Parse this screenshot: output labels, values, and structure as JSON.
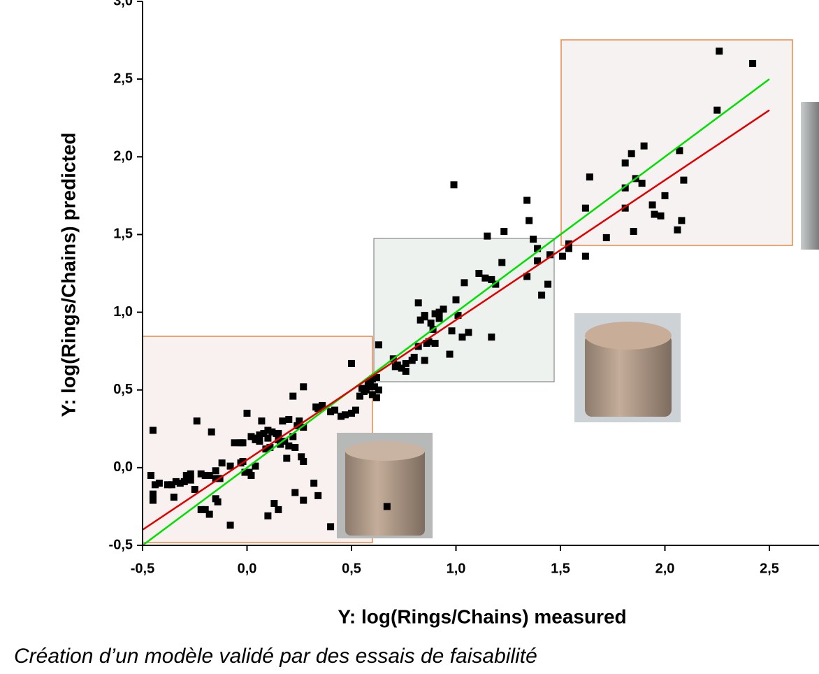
{
  "chart_data": {
    "type": "scatter",
    "x_label": "Y: log(Rings/Chains) measured",
    "y_label": "Y: log(Rings/Chains) predicted",
    "caption": "Création d’un modèle validé par des essais de faisabilité",
    "color": "#000000",
    "xlim": [
      -0.5,
      2.7
    ],
    "ylim": [
      -0.5,
      3.0
    ],
    "xticks": [
      {
        "value": -0.5,
        "label": "-0,5"
      },
      {
        "value": 0,
        "label": "0,0"
      },
      {
        "value": 0.5,
        "label": "0,5"
      },
      {
        "value": 1.0,
        "label": "1,0"
      },
      {
        "value": 1.5,
        "label": "1,5"
      },
      {
        "value": 2.0,
        "label": "2,0"
      },
      {
        "value": 2.5,
        "label": "2,5"
      }
    ],
    "yticks": [
      {
        "value": -0.5,
        "label": "-0,5"
      },
      {
        "value": 0,
        "label": "0,0"
      },
      {
        "value": 0.5,
        "label": "0,5"
      },
      {
        "value": 1.0,
        "label": "1,0"
      },
      {
        "value": 1.5,
        "label": "1,5"
      },
      {
        "value": 2.0,
        "label": "2,0"
      },
      {
        "value": 2.5,
        "label": "2,5"
      },
      {
        "value": 3.0,
        "label": "3,0"
      }
    ],
    "x": [
      2.26,
      2.42,
      2.25,
      2.07,
      2.09,
      1.9,
      1.84,
      1.81,
      1.86,
      1.89,
      1.81,
      1.64,
      1.62,
      1.81,
      1.94,
      2.0,
      1.95,
      1.98,
      2.08,
      2.06,
      1.85,
      1.72,
      1.62,
      1.54,
      1.54,
      1.51,
      1.45,
      1.44,
      1.39,
      1.39,
      1.37,
      1.35,
      1.34,
      1.23,
      1.15,
      1.22,
      1.34,
      1.41,
      1.17,
      1.11,
      1.14,
      1.19,
      1.04,
      0.99,
      1.0,
      1.17,
      1.01,
      0.98,
      0.97,
      1.03,
      1.06,
      0.94,
      0.92,
      0.92,
      0.9,
      0.89,
      0.87,
      0.85,
      0.85,
      0.83,
      0.82,
      0.82,
      0.85,
      0.8,
      0.76,
      0.76,
      0.74,
      0.72,
      0.7,
      0.71,
      0.79,
      0.86,
      0.9,
      0.88,
      0.63,
      0.62,
      0.6,
      0.61,
      0.59,
      0.58,
      0.58,
      0.57,
      0.56,
      0.55,
      0.54,
      0.6,
      0.62,
      0.63,
      0.5,
      0.67,
      0.5,
      0.52,
      0.47,
      0.45,
      0.42,
      0.4,
      0.36,
      0.33,
      0.34,
      0.27,
      0.22,
      0.27,
      0.25,
      0.2,
      0.17,
      0.24,
      0.22,
      0.2,
      0.18,
      0.23,
      0.26,
      0.27,
      0.19,
      0.15,
      0.14,
      0.12,
      0.1,
      0.08,
      0.06,
      0.05,
      0.04,
      0.06,
      0.1,
      0.15,
      0.16,
      0.11,
      0.09,
      0.07,
      0.0,
      0.02,
      -0.02,
      -0.03,
      -0.06,
      -0.02,
      -0.01,
      -0.03,
      0.01,
      0.04,
      -0.08,
      -0.12,
      -0.13,
      -0.15,
      -0.15,
      -0.18,
      -0.2,
      -0.22,
      -0.24,
      -0.17,
      -0.27,
      -0.27,
      -0.29,
      -0.3,
      -0.32,
      -0.34,
      -0.35,
      -0.36,
      -0.38,
      -0.42,
      -0.44,
      -0.45,
      -0.45,
      -0.46,
      -0.45,
      -0.25,
      -0.22,
      -0.2,
      -0.18,
      -0.15,
      -0.14,
      -0.08,
      0.1,
      0.13,
      0.15,
      0.23,
      0.27,
      0.34,
      0.4,
      0.02,
      0.32
    ],
    "values": [
      2.68,
      2.6,
      2.3,
      2.04,
      1.85,
      2.07,
      2.02,
      1.96,
      1.86,
      1.83,
      1.8,
      1.87,
      1.67,
      1.67,
      1.69,
      1.75,
      1.63,
      1.62,
      1.59,
      1.53,
      1.52,
      1.48,
      1.36,
      1.44,
      1.41,
      1.36,
      1.37,
      1.18,
      1.33,
      1.41,
      1.47,
      1.59,
      1.72,
      1.52,
      1.49,
      1.32,
      1.23,
      1.11,
      1.21,
      1.25,
      1.22,
      1.18,
      1.19,
      1.82,
      1.08,
      0.84,
      0.98,
      0.88,
      0.73,
      0.84,
      0.87,
      1.02,
      1.0,
      0.96,
      0.99,
      0.89,
      0.81,
      0.97,
      0.98,
      0.95,
      1.06,
      0.78,
      0.69,
      0.71,
      0.62,
      0.67,
      0.64,
      0.66,
      0.7,
      0.65,
      0.69,
      0.8,
      0.8,
      0.93,
      0.79,
      0.58,
      0.57,
      0.52,
      0.56,
      0.55,
      0.52,
      0.5,
      0.49,
      0.51,
      0.46,
      0.47,
      0.45,
      0.5,
      0.67,
      -0.25,
      0.35,
      0.37,
      0.34,
      0.33,
      0.37,
      0.36,
      0.4,
      0.39,
      0.38,
      0.52,
      0.46,
      0.26,
      0.3,
      0.31,
      0.3,
      0.27,
      0.2,
      0.14,
      0.17,
      0.13,
      0.07,
      0.04,
      0.06,
      0.22,
      0.22,
      0.23,
      0.24,
      0.22,
      0.21,
      0.19,
      0.18,
      0.17,
      0.19,
      0.18,
      0.15,
      0.13,
      0.12,
      0.3,
      0.35,
      0.2,
      0.16,
      0.16,
      0.16,
      0.04,
      -0.03,
      0.03,
      -0.03,
      0.01,
      0.01,
      0.03,
      -0.07,
      -0.07,
      -0.02,
      -0.05,
      -0.05,
      -0.04,
      0.3,
      0.23,
      -0.04,
      -0.08,
      -0.05,
      -0.09,
      -0.1,
      -0.09,
      -0.19,
      -0.11,
      -0.11,
      -0.1,
      -0.11,
      -0.17,
      -0.21,
      -0.05,
      0.24,
      -0.14,
      -0.27,
      -0.27,
      -0.3,
      -0.2,
      -0.22,
      -0.37,
      -0.31,
      -0.23,
      -0.27,
      -0.16,
      -0.21,
      -0.18,
      -0.38,
      -0.05,
      -0.1
    ],
    "lines": [
      {
        "color": "#00e000",
        "x": [
          -0.5,
          2.5
        ],
        "values": [
          -0.5,
          2.5
        ]
      },
      {
        "color": "#e00000",
        "x": [
          -0.5,
          2.5
        ],
        "values": [
          -0.4,
          2.3
        ]
      }
    ]
  }
}
